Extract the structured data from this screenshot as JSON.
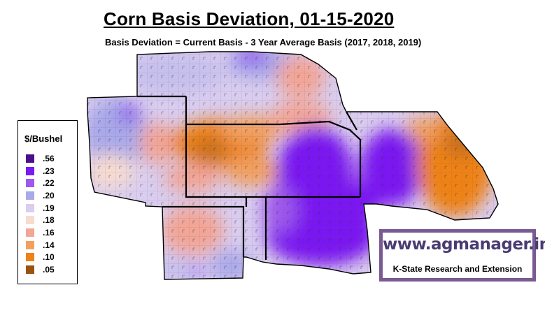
{
  "title": "Corn Basis Deviation, 01-15-2020",
  "subtitle": "Basis Deviation = Current Basis - 3 Year Average Basis (2017, 2018, 2019)",
  "legend": {
    "title": "$/Bushel",
    "items": [
      {
        "label": ".56",
        "color": "#4b0f8c"
      },
      {
        "label": ".23",
        "color": "#7a18f2"
      },
      {
        "label": ".22",
        "color": "#9e58ec"
      },
      {
        "label": ".20",
        "color": "#a9a8ea"
      },
      {
        "label": ".19",
        "color": "#d9cdf0"
      },
      {
        "label": ".18",
        "color": "#f7dcd0"
      },
      {
        "label": ".16",
        "color": "#f3a596"
      },
      {
        "label": ".14",
        "color": "#f2a060"
      },
      {
        "label": ".10",
        "color": "#ee8216"
      },
      {
        "label": ".05",
        "color": "#9b520e"
      }
    ]
  },
  "watermark": {
    "url": "www.agmanager.info",
    "org": "K-State Research and Extension",
    "frame_color": "#7a5a92",
    "text_color": "#4a3c72"
  }
}
